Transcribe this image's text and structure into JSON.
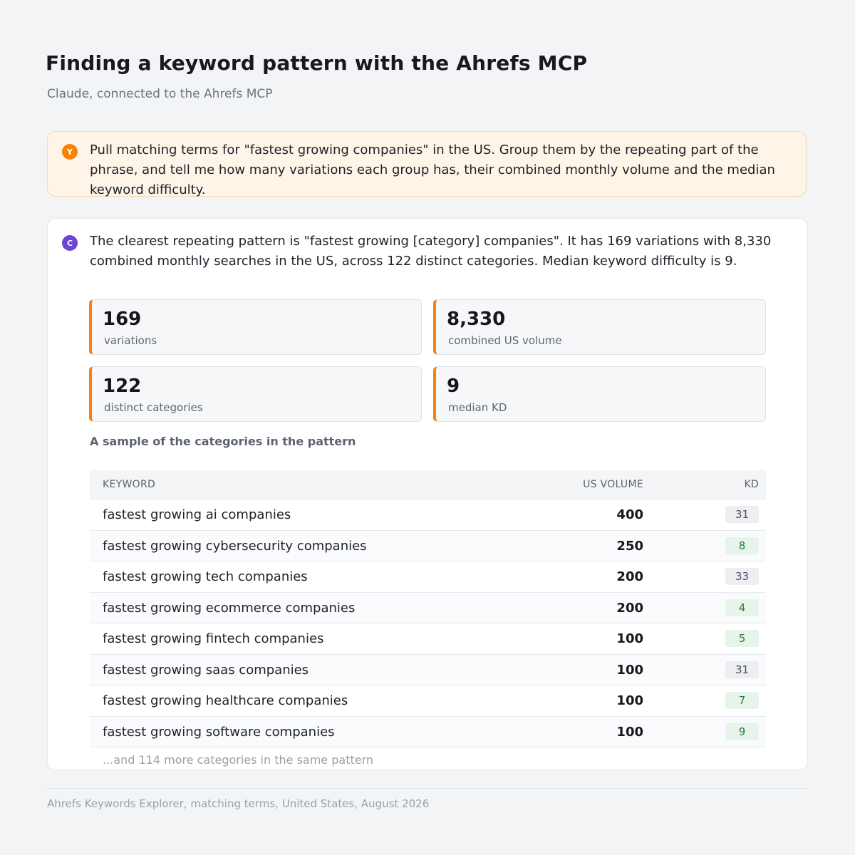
{
  "header": {
    "title": "Finding a keyword pattern with the Ahrefs MCP",
    "subtitle": "Claude, connected to the Ahrefs MCP"
  },
  "user_message": {
    "avatar_letter": "Y",
    "text": "Pull matching terms for \"fastest growing companies\" in the US. Group them by the repeating part of the phrase, and tell me how many variations each group has, their combined monthly volume and the median keyword difficulty."
  },
  "assistant_message": {
    "avatar_letter": "C",
    "text": "The clearest repeating pattern is \"fastest growing [category] companies\". It has 169 variations with 8,330 combined monthly searches in the US, across 122 distinct categories. Median keyword difficulty is 9."
  },
  "stats": [
    {
      "value": "169",
      "label": "variations"
    },
    {
      "value": "8,330",
      "label": "combined US volume"
    },
    {
      "value": "122",
      "label": "distinct categories"
    },
    {
      "value": "9",
      "label": "median KD"
    }
  ],
  "sample_title": "A sample of the categories in the pattern",
  "table": {
    "headers": {
      "keyword": "KEYWORD",
      "volume": "US VOLUME",
      "kd": "KD"
    },
    "rows": [
      {
        "keyword": "fastest growing ai companies",
        "volume": "400",
        "kd": "31",
        "kd_color": "gray"
      },
      {
        "keyword": "fastest growing cybersecurity companies",
        "volume": "250",
        "kd": "8",
        "kd_color": "green"
      },
      {
        "keyword": "fastest growing tech companies",
        "volume": "200",
        "kd": "33",
        "kd_color": "gray"
      },
      {
        "keyword": "fastest growing ecommerce companies",
        "volume": "200",
        "kd": "4",
        "kd_color": "green"
      },
      {
        "keyword": "fastest growing fintech companies",
        "volume": "100",
        "kd": "5",
        "kd_color": "green"
      },
      {
        "keyword": "fastest growing saas companies",
        "volume": "100",
        "kd": "31",
        "kd_color": "gray"
      },
      {
        "keyword": "fastest growing healthcare companies",
        "volume": "100",
        "kd": "7",
        "kd_color": "green"
      },
      {
        "keyword": "fastest growing software companies",
        "volume": "100",
        "kd": "9",
        "kd_color": "green"
      }
    ],
    "more_text": "...and 114 more categories in the same pattern"
  },
  "footer": "Ahrefs Keywords Explorer, matching terms, United States, August 2026",
  "colors": {
    "accent_orange": "#f5820b",
    "claude_purple": "#6b46d6",
    "kd_green_bg": "#e6f4ea",
    "kd_green_text": "#2f7a46",
    "kd_gray_bg": "#eceef1"
  }
}
